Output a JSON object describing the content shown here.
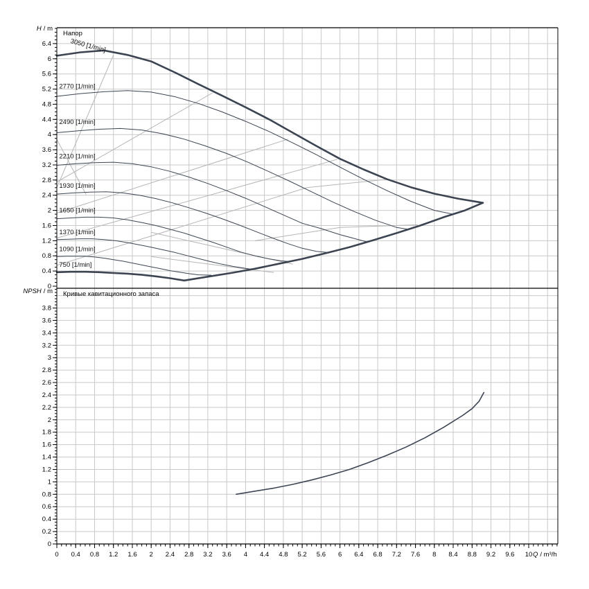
{
  "colors": {
    "background": "#ffffff",
    "curve": "#3c4452",
    "grid": "#c9c9c9",
    "efficiency_line": "#b5b5b5",
    "border": "#000000",
    "text": "#000000"
  },
  "chart_data": {
    "type": "line",
    "x_axis": {
      "symbol": "Q",
      "suffix": "/ m³/h",
      "label": "Q / m³/h",
      "min": 0,
      "max": 10.6,
      "tick_step": 0.4,
      "minor_step": 0.1,
      "tick_labels": [
        "0",
        "0.4",
        "0.8",
        "1.2",
        "1.6",
        "2",
        "2.4",
        "2.8",
        "3.2",
        "3.6",
        "4",
        "4.4",
        "4.8",
        "5.2",
        "5.6",
        "6",
        "6.4",
        "6.8",
        "7.2",
        "7.6",
        "8",
        "8.4",
        "8.8",
        "9.2",
        "9.6",
        "10"
      ]
    },
    "panels": [
      {
        "id": "head",
        "title": "Напор",
        "axis_symbol": "H",
        "axis_suffix": "/ m",
        "axis_label": "H / m",
        "y_min": 0,
        "y_max": 6.82,
        "tick_step": 0.4,
        "minor_step": 0.1,
        "tick_labels": [
          "0",
          "0.4",
          "0.8",
          "1.2",
          "1.6",
          "2",
          "2.4",
          "2.8",
          "3.2",
          "3.6",
          "4",
          "4.4",
          "4.8",
          "5.2",
          "5.6",
          "6",
          "6.4"
        ],
        "curves": [
          {
            "rpm": 3050,
            "label": "3050 [1/min]",
            "bold": true,
            "label_pos": [
              0.28,
              6.42
            ],
            "label_rotate": 15,
            "points": [
              [
                0,
                6.08
              ],
              [
                0.5,
                6.17
              ],
              [
                1,
                6.22
              ],
              [
                1.5,
                6.1
              ],
              [
                2,
                5.93
              ],
              [
                2.5,
                5.64
              ],
              [
                3,
                5.33
              ],
              [
                3.5,
                5.03
              ],
              [
                4,
                4.72
              ],
              [
                4.5,
                4.4
              ],
              [
                5,
                4.05
              ],
              [
                5.5,
                3.7
              ],
              [
                6,
                3.36
              ],
              [
                6.5,
                3.08
              ],
              [
                7,
                2.82
              ],
              [
                7.5,
                2.61
              ],
              [
                8,
                2.44
              ],
              [
                8.5,
                2.31
              ],
              [
                9.03,
                2.2
              ]
            ]
          },
          {
            "rpm": 2770,
            "label": "2770 [1/min]",
            "bold": false,
            "label_pos": [
              0.05,
              5.22
            ],
            "label_rotate": 0,
            "points": [
              [
                0,
                5.01
              ],
              [
                0.5,
                5.08
              ],
              [
                1,
                5.13
              ],
              [
                1.5,
                5.16
              ],
              [
                2,
                5.12
              ],
              [
                2.5,
                5.0
              ],
              [
                3,
                4.82
              ],
              [
                3.5,
                4.6
              ],
              [
                4,
                4.35
              ],
              [
                4.5,
                4.08
              ],
              [
                5,
                3.78
              ],
              [
                5.5,
                3.47
              ],
              [
                6,
                3.14
              ],
              [
                6.5,
                2.82
              ],
              [
                7,
                2.52
              ],
              [
                7.5,
                2.24
              ],
              [
                8,
                2.0
              ],
              [
                8.4,
                1.9
              ]
            ]
          },
          {
            "rpm": 2490,
            "label": "2490 [1/min]",
            "bold": false,
            "label_pos": [
              0.05,
              4.28
            ],
            "label_rotate": 0,
            "points": [
              [
                0,
                4.05
              ],
              [
                0.45,
                4.1
              ],
              [
                0.9,
                4.14
              ],
              [
                1.35,
                4.16
              ],
              [
                1.8,
                4.12
              ],
              [
                2.25,
                4.02
              ],
              [
                2.7,
                3.88
              ],
              [
                3.15,
                3.7
              ],
              [
                3.6,
                3.5
              ],
              [
                4.05,
                3.27
              ],
              [
                4.5,
                3.02
              ],
              [
                4.95,
                2.76
              ],
              [
                5.4,
                2.49
              ],
              [
                5.85,
                2.22
              ],
              [
                6.3,
                1.97
              ],
              [
                6.75,
                1.74
              ],
              [
                7.2,
                1.55
              ],
              [
                7.45,
                1.5
              ]
            ]
          },
          {
            "rpm": 2210,
            "label": "2210 [1/min]",
            "bold": false,
            "label_pos": [
              0.05,
              3.37
            ],
            "label_rotate": 0,
            "points": [
              [
                0,
                3.19
              ],
              [
                0.4,
                3.23
              ],
              [
                0.8,
                3.26
              ],
              [
                1.2,
                3.27
              ],
              [
                1.6,
                3.23
              ],
              [
                2,
                3.15
              ],
              [
                2.4,
                3.03
              ],
              [
                2.8,
                2.88
              ],
              [
                3.2,
                2.71
              ],
              [
                3.6,
                2.52
              ],
              [
                4,
                2.32
              ],
              [
                4.4,
                2.1
              ],
              [
                4.8,
                1.88
              ],
              [
                5.2,
                1.66
              ],
              [
                5.6,
                1.52
              ],
              [
                6,
                1.36
              ],
              [
                6.3,
                1.26
              ],
              [
                6.57,
                1.17
              ]
            ]
          },
          {
            "rpm": 1930,
            "label": "1930 [1/min]",
            "bold": false,
            "label_pos": [
              0.05,
              2.6
            ],
            "label_rotate": 0,
            "points": [
              [
                0,
                2.43
              ],
              [
                0.35,
                2.46
              ],
              [
                0.7,
                2.48
              ],
              [
                1.05,
                2.49
              ],
              [
                1.4,
                2.46
              ],
              [
                1.75,
                2.4
              ],
              [
                2.1,
                2.31
              ],
              [
                2.45,
                2.2
              ],
              [
                2.8,
                2.07
              ],
              [
                3.15,
                1.93
              ],
              [
                3.5,
                1.78
              ],
              [
                3.85,
                1.62
              ],
              [
                4.2,
                1.45
              ],
              [
                4.55,
                1.28
              ],
              [
                4.9,
                1.12
              ],
              [
                5.2,
                1.0
              ],
              [
                5.5,
                0.92
              ],
              [
                5.73,
                0.89
              ]
            ]
          },
          {
            "rpm": 1650,
            "label": "1650 [1/min]",
            "bold": false,
            "label_pos": [
              0.05,
              1.95
            ],
            "label_rotate": 0,
            "points": [
              [
                0,
                1.78
              ],
              [
                0.3,
                1.8
              ],
              [
                0.6,
                1.82
              ],
              [
                0.9,
                1.82
              ],
              [
                1.2,
                1.8
              ],
              [
                1.5,
                1.75
              ],
              [
                1.8,
                1.68
              ],
              [
                2.1,
                1.6
              ],
              [
                2.4,
                1.5
              ],
              [
                2.7,
                1.4
              ],
              [
                3,
                1.28
              ],
              [
                3.3,
                1.16
              ],
              [
                3.6,
                1.03
              ],
              [
                3.9,
                0.9
              ],
              [
                4.2,
                0.8
              ],
              [
                4.5,
                0.72
              ],
              [
                4.75,
                0.67
              ],
              [
                4.92,
                0.65
              ]
            ]
          },
          {
            "rpm": 1370,
            "label": "1370 [1/min]",
            "bold": false,
            "label_pos": [
              0.05,
              1.37
            ],
            "label_rotate": 0,
            "points": [
              [
                0,
                1.23
              ],
              [
                0.25,
                1.24
              ],
              [
                0.5,
                1.25
              ],
              [
                0.75,
                1.25
              ],
              [
                1,
                1.23
              ],
              [
                1.25,
                1.2
              ],
              [
                1.5,
                1.15
              ],
              [
                1.75,
                1.09
              ],
              [
                2,
                1.03
              ],
              [
                2.25,
                0.96
              ],
              [
                2.5,
                0.89
              ],
              [
                2.75,
                0.81
              ],
              [
                3,
                0.73
              ],
              [
                3.25,
                0.65
              ],
              [
                3.5,
                0.58
              ],
              [
                3.75,
                0.52
              ],
              [
                4,
                0.47
              ],
              [
                4.1,
                0.45
              ]
            ]
          },
          {
            "rpm": 1090,
            "label": "1090 [1/min]",
            "bold": false,
            "label_pos": [
              0.05,
              0.92
            ],
            "label_rotate": 0,
            "points": [
              [
                0,
                0.78
              ],
              [
                0.2,
                0.79
              ],
              [
                0.4,
                0.79
              ],
              [
                0.6,
                0.79
              ],
              [
                0.8,
                0.77
              ],
              [
                1,
                0.74
              ],
              [
                1.2,
                0.7
              ],
              [
                1.4,
                0.66
              ],
              [
                1.6,
                0.61
              ],
              [
                1.8,
                0.56
              ],
              [
                2,
                0.51
              ],
              [
                2.2,
                0.46
              ],
              [
                2.4,
                0.41
              ],
              [
                2.6,
                0.37
              ],
              [
                2.8,
                0.33
              ],
              [
                3,
                0.3
              ],
              [
                3.27,
                0.29
              ]
            ]
          },
          {
            "rpm": 750,
            "label": "750 [1/min]",
            "bold": true,
            "label_pos": [
              0.05,
              0.51
            ],
            "label_rotate": 0,
            "points": [
              [
                0,
                0.37
              ],
              [
                0.3,
                0.38
              ],
              [
                0.6,
                0.38
              ],
              [
                0.9,
                0.37
              ],
              [
                1.2,
                0.35
              ],
              [
                1.5,
                0.33
              ],
              [
                1.8,
                0.3
              ],
              [
                2.1,
                0.26
              ],
              [
                2.4,
                0.21
              ],
              [
                2.7,
                0.15
              ]
            ]
          }
        ],
        "min_flow_limit": {
          "bold": true,
          "points": [
            [
              2.7,
              0.15
            ],
            [
              3.2,
              0.25
            ],
            [
              3.7,
              0.35
            ],
            [
              4.2,
              0.46
            ],
            [
              4.7,
              0.59
            ],
            [
              5.2,
              0.72
            ],
            [
              5.7,
              0.87
            ],
            [
              6.2,
              1.03
            ],
            [
              6.7,
              1.21
            ],
            [
              7.2,
              1.4
            ],
            [
              7.7,
              1.6
            ],
            [
              8.2,
              1.82
            ],
            [
              8.65,
              2.0
            ],
            [
              9.03,
              2.2
            ]
          ]
        },
        "efficiency_lines": [
          [
            [
              0,
              2.6
            ],
            [
              1.2,
              6.1
            ]
          ],
          [
            [
              0,
              3.87
            ],
            [
              0.62,
              2.42
            ]
          ],
          [
            [
              0,
              2.75
            ],
            [
              3.3,
              5.1
            ]
          ],
          [
            [
              0,
              1.93
            ],
            [
              4.9,
              3.88
            ]
          ],
          [
            [
              0,
              1.27
            ],
            [
              5.95,
              3.35
            ]
          ],
          [
            [
              0,
              0.55
            ],
            [
              5.3,
              2.6
            ],
            [
              7.0,
              2.82
            ]
          ],
          [
            [
              2.0,
              1.42
            ],
            [
              5.0,
              0.58
            ]
          ],
          [
            [
              2.0,
              0.78
            ],
            [
              4.6,
              0.36
            ]
          ],
          [
            [
              4.2,
              1.2
            ],
            [
              6.0,
              1.55
            ],
            [
              7.65,
              1.62
            ]
          ]
        ]
      },
      {
        "id": "npsh",
        "title": "Кривые кавитационного запаса",
        "axis_symbol": "NPSH",
        "axis_suffix": "/ m",
        "axis_label": "NPSH / m",
        "y_min": 0,
        "y_max": 4.12,
        "tick_step": 0.2,
        "minor_step": 0.05,
        "tick_labels": [
          "0",
          "0.2",
          "0.4",
          "0.6",
          "0.8",
          "1",
          "1.2",
          "1.4",
          "1.6",
          "1.8",
          "2",
          "2.2",
          "2.4",
          "2.6",
          "2.8",
          "3",
          "3.2",
          "3.4",
          "3.6",
          "3.8"
        ],
        "curves": [
          {
            "rpm": null,
            "label": "NPSH",
            "bold": false,
            "label_pos": null,
            "label_rotate": 0,
            "points": [
              [
                3.8,
                0.8
              ],
              [
                4.2,
                0.85
              ],
              [
                4.6,
                0.9
              ],
              [
                5,
                0.96
              ],
              [
                5.4,
                1.03
              ],
              [
                5.8,
                1.11
              ],
              [
                6.2,
                1.2
              ],
              [
                6.6,
                1.31
              ],
              [
                7,
                1.43
              ],
              [
                7.4,
                1.56
              ],
              [
                7.8,
                1.71
              ],
              [
                8.2,
                1.88
              ],
              [
                8.6,
                2.07
              ],
              [
                8.8,
                2.18
              ],
              [
                8.95,
                2.3
              ],
              [
                9.05,
                2.44
              ]
            ]
          }
        ],
        "efficiency_lines": []
      }
    ]
  }
}
